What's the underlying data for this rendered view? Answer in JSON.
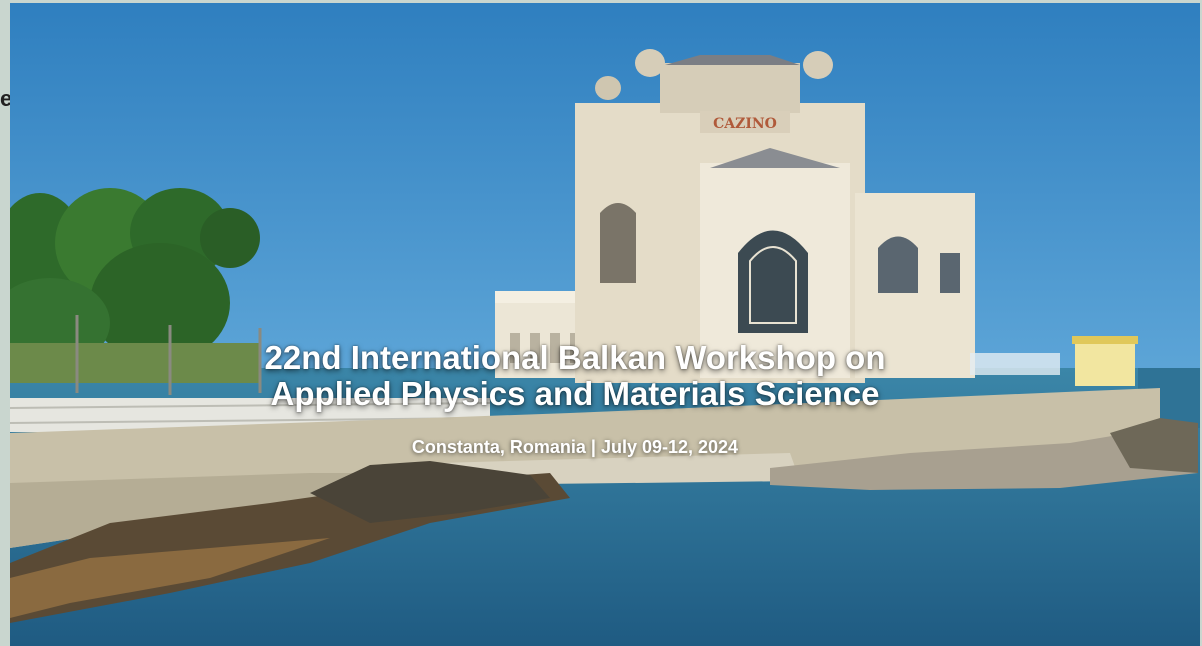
{
  "hero": {
    "title_line1": "22nd International Balkan Workshop on",
    "title_line2": "Applied Physics and Materials Science",
    "subtitle": "Constanta, Romania | July 09-12, 2024",
    "building_sign": "CAZINO",
    "image": "constanta-casino-seaside-photo"
  },
  "page": {
    "left_edge_fragment": "e"
  },
  "colors": {
    "sky": "#3f8ec8",
    "sea": "#2d6e94",
    "stone_wall": "#c9c2ad",
    "building": "#e8e0cc",
    "trees": "#2e6a2a",
    "frame": "#c9d6cf"
  }
}
